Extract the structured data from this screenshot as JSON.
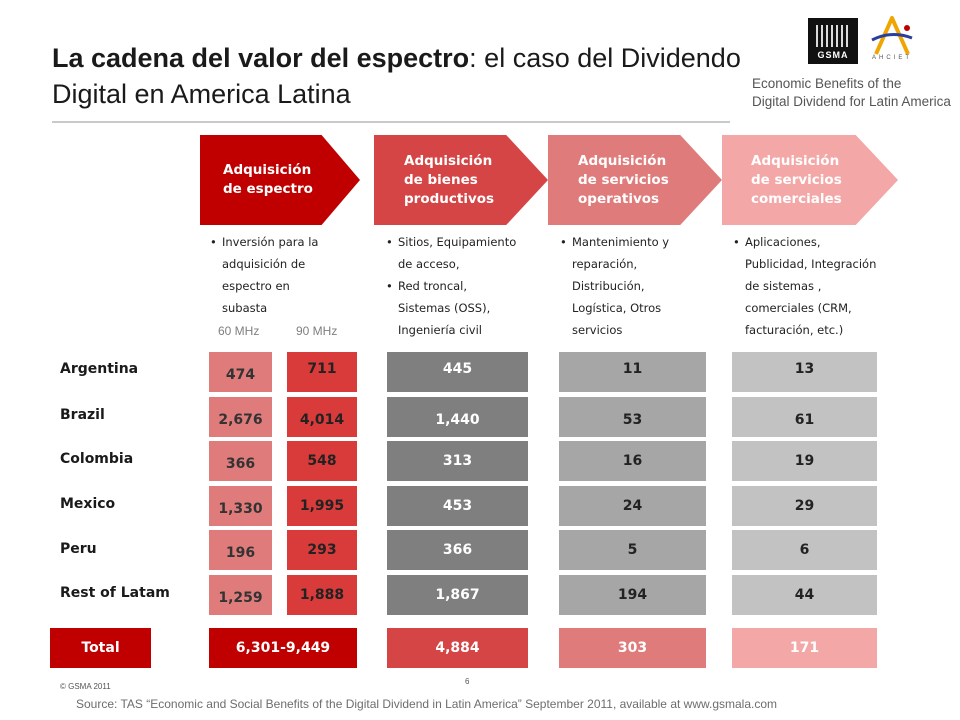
{
  "header": {
    "title_bold": "La cadena del valor del espectro",
    "title_rest": ": el caso del Dividendo Digital en America Latina",
    "report_title_line1": "Economic Benefits of the",
    "report_title_line2": "Digital Dividend for Latin America",
    "gsma_logo_text": "GSMA",
    "ahciet_logo_text": "AHCIET"
  },
  "colors": {
    "stage1": "#c00000",
    "stage2": "#d64545",
    "stage3": "#e07b7b",
    "stage4": "#f4a7a7",
    "total_spectrum": "#c00000",
    "total_productive": "#d64545",
    "total_operative": "#e07b7b",
    "total_commercial": "#f4a7a7"
  },
  "stages": [
    {
      "label_lines": [
        "Adquisición",
        "de espectro"
      ],
      "bullets": [
        [
          "Inversión para la",
          "adquisición de",
          "espectro en",
          "subasta"
        ]
      ]
    },
    {
      "label_lines": [
        "Adquisición",
        "de bienes",
        "productivos"
      ],
      "bullets": [
        [
          "Sitios, Equipamiento",
          "de acceso,"
        ],
        [
          "Red troncal,",
          "Sistemas (OSS),",
          "Ingeniería civil"
        ]
      ]
    },
    {
      "label_lines": [
        "Adquisición",
        "de servicios",
        "operativos"
      ],
      "bullets": [
        [
          "Mantenimiento y",
          "reparación,",
          "Distribución,",
          "Logística, Otros",
          "servicios"
        ]
      ]
    },
    {
      "label_lines": [
        "Adquisición",
        "de servicios",
        "comerciales"
      ],
      "bullets": [
        [
          "Aplicaciones,",
          "Publicidad, Integración",
          "de sistemas ,",
          "comerciales (CRM,",
          "facturación, etc.)"
        ]
      ]
    }
  ],
  "spectrum_subheaders": {
    "mhz60": "60 MHz",
    "mhz90": "90 MHz"
  },
  "rows": [
    {
      "country": "Argentina",
      "mhz60": "474",
      "mhz90": "711",
      "productive": "445",
      "operative": "11",
      "commercial": "13"
    },
    {
      "country": "Brazil",
      "mhz60": "2,676",
      "mhz90": "4,014",
      "productive": "1,440",
      "operative": "53",
      "commercial": "61"
    },
    {
      "country": "Colombia",
      "mhz60": "366",
      "mhz90": "548",
      "productive": "313",
      "operative": "16",
      "commercial": "19"
    },
    {
      "country": "Mexico",
      "mhz60": "1,330",
      "mhz90": "1,995",
      "productive": "453",
      "operative": "24",
      "commercial": "29"
    },
    {
      "country": "Peru",
      "mhz60": "196",
      "mhz90": "293",
      "productive": "366",
      "operative": "5",
      "commercial": "6"
    },
    {
      "country": "Rest of Latam",
      "mhz60": "1,259",
      "mhz90": "1,888",
      "productive": "1,867",
      "operative": "194",
      "commercial": "44"
    }
  ],
  "totals": {
    "label": "Total",
    "spectrum": "6,301-9,449",
    "productive": "4,884",
    "operative": "303",
    "commercial": "171"
  },
  "footer": {
    "copyright": "© GSMA 2011",
    "page_number": "6",
    "source": "Source: TAS “Economic and Social Benefits of the Digital Dividend in Latin America” September 2011, available at www.gsmala.com"
  }
}
